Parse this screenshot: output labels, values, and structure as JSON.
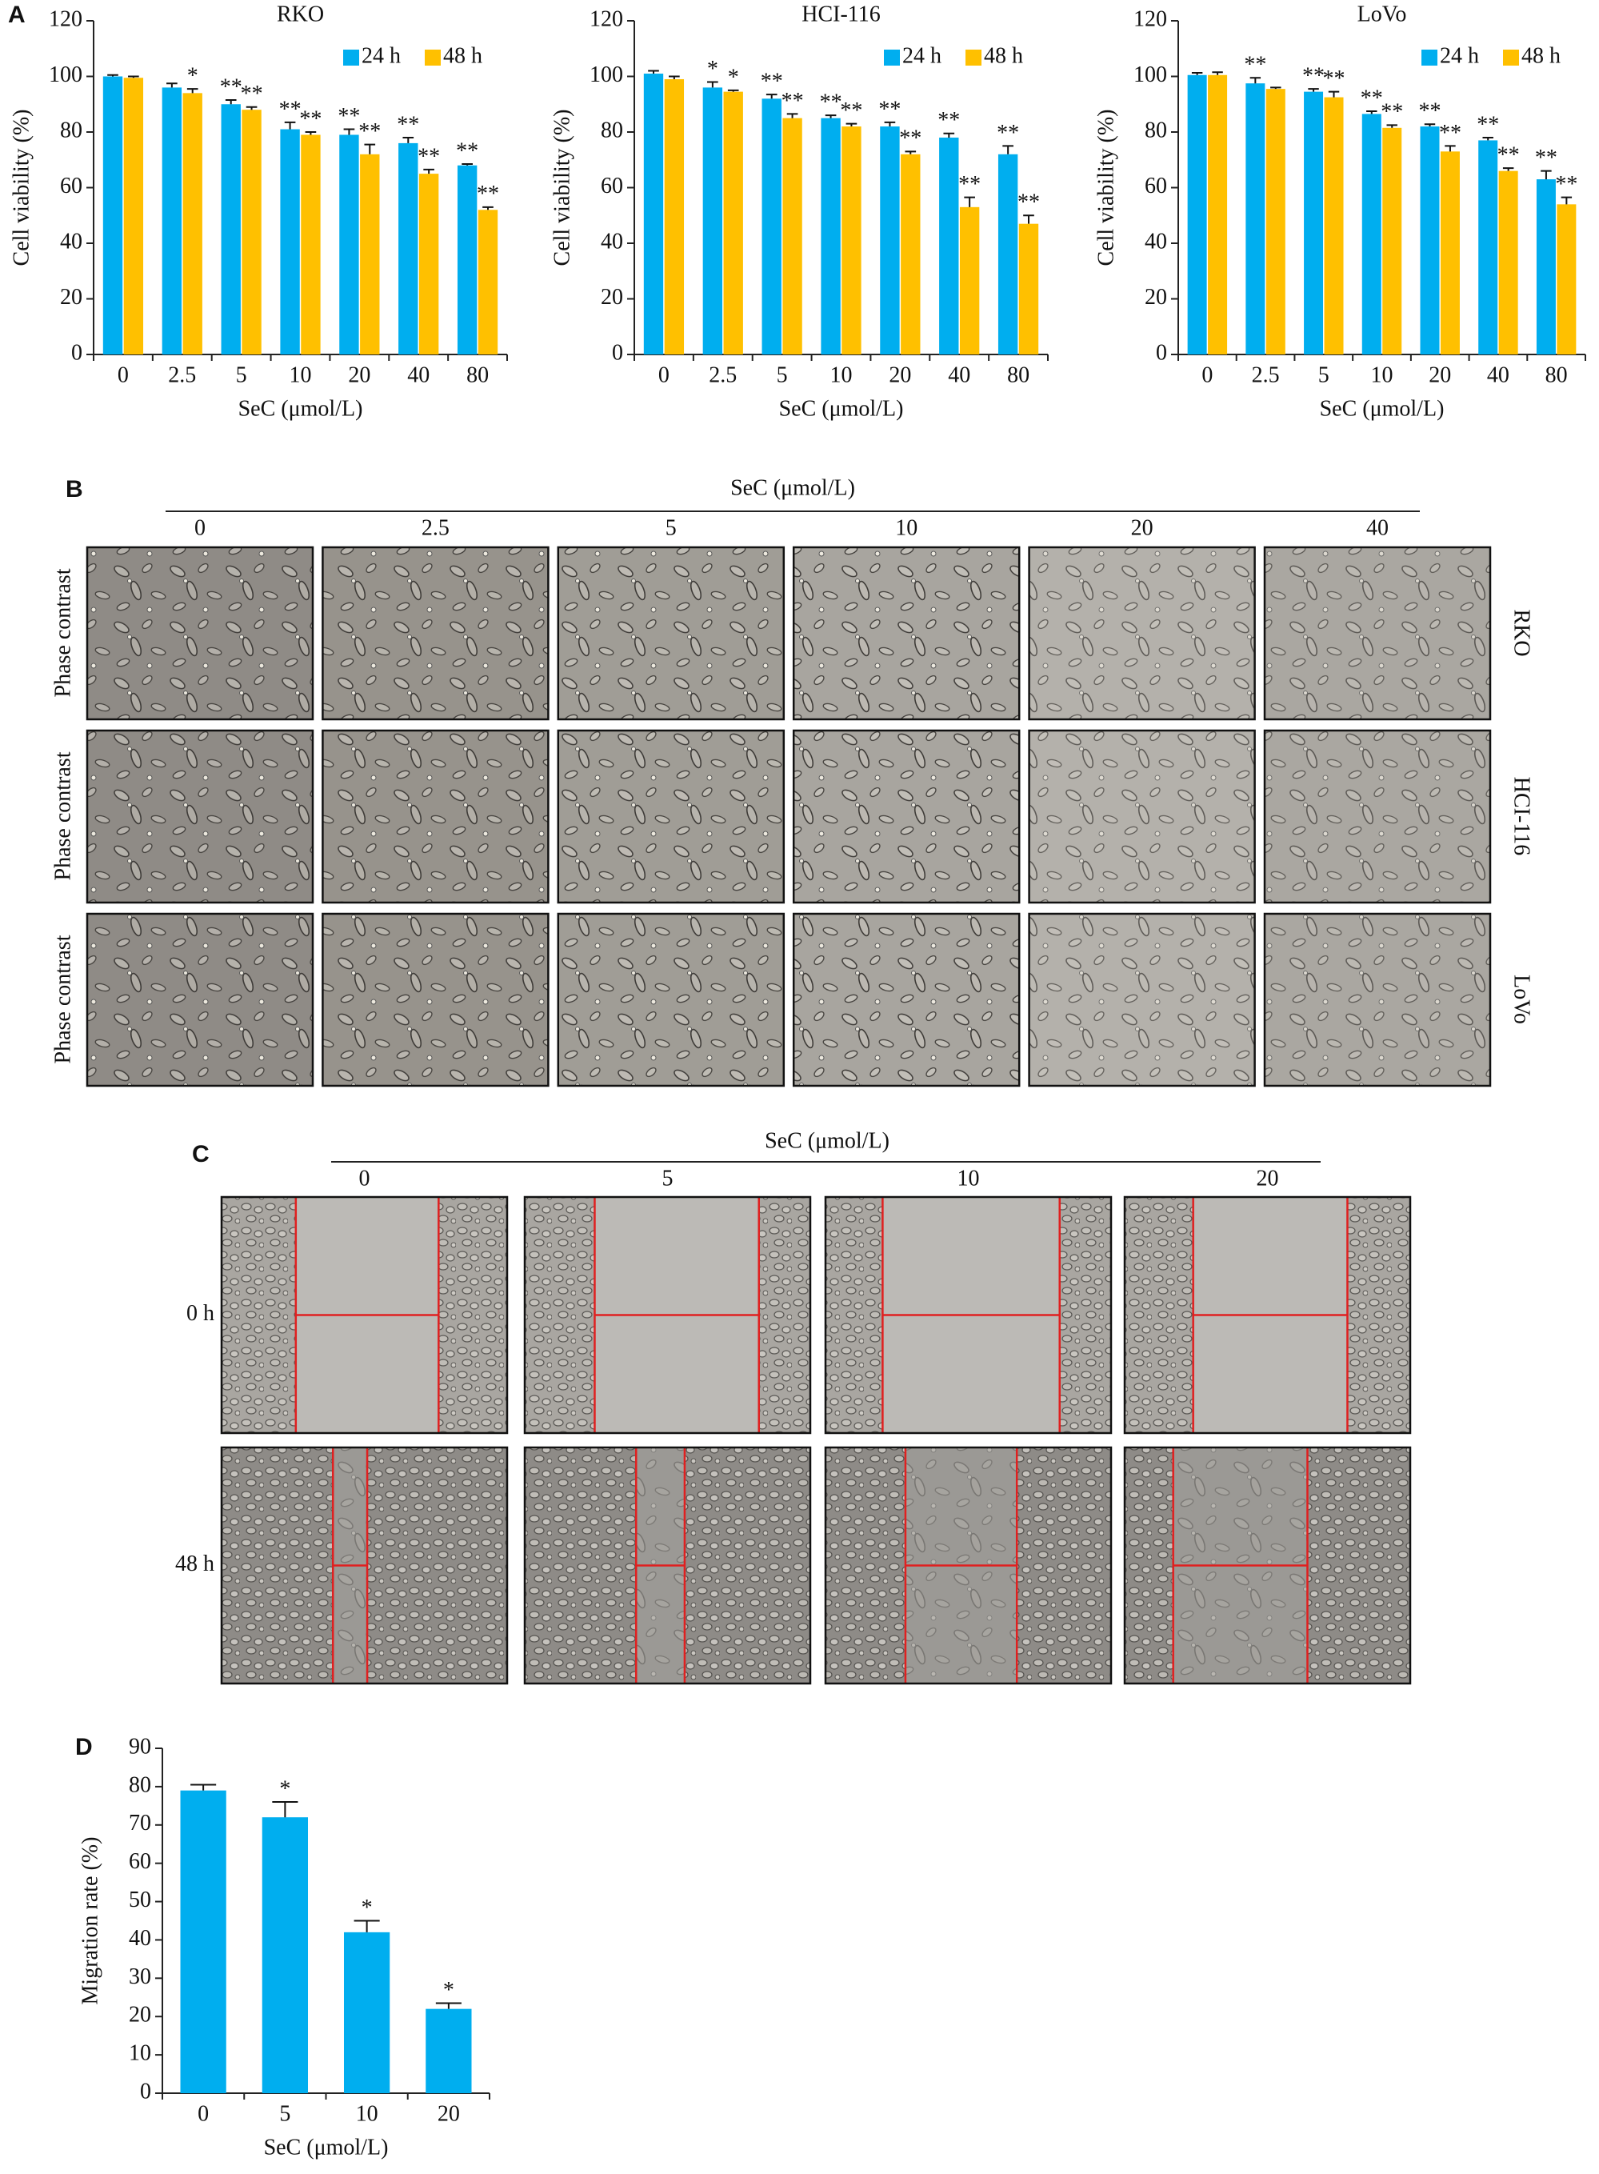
{
  "panel_labels": [
    "A",
    "B",
    "C",
    "D"
  ],
  "chart_data": [
    {
      "type": "bar",
      "title": "RKO",
      "x_label": "SeC (μmol/L)",
      "y_label": "Cell viability (%)",
      "categories": [
        "0",
        "2.5",
        "5",
        "10",
        "20",
        "40",
        "80"
      ],
      "series": [
        {
          "name": "24 h",
          "color": "#00aeef",
          "values": [
            100,
            96,
            90,
            81,
            79,
            76,
            68
          ],
          "errors": [
            0.5,
            1.5,
            1.5,
            2.5,
            2,
            2,
            0.5
          ],
          "annotations": [
            null,
            null,
            "**",
            "**",
            "**",
            "**",
            "**"
          ]
        },
        {
          "name": "48 h",
          "color": "#ffc000",
          "values": [
            99.5,
            94,
            88,
            79,
            72,
            65,
            52
          ],
          "errors": [
            0.5,
            1.5,
            1,
            1,
            3.5,
            1.5,
            1
          ],
          "annotations": [
            null,
            "*",
            "**",
            "**",
            "**",
            "**",
            "**"
          ]
        }
      ],
      "ylim": [
        0,
        120
      ],
      "yticks": [
        0,
        20,
        40,
        60,
        80,
        100,
        120
      ],
      "legend": "top-right"
    },
    {
      "type": "bar",
      "title": "HCI-116",
      "x_label": "SeC (μmol/L)",
      "y_label": "Cell viability (%)",
      "categories": [
        "0",
        "2.5",
        "5",
        "10",
        "20",
        "40",
        "80"
      ],
      "series": [
        {
          "name": "24 h",
          "color": "#00aeef",
          "values": [
            101,
            96,
            92,
            85,
            82,
            78,
            72
          ],
          "errors": [
            1,
            2,
            1.5,
            1,
            1.5,
            1.5,
            3
          ],
          "annotations": [
            null,
            "*",
            "**",
            "**",
            "**",
            "**",
            "**"
          ]
        },
        {
          "name": "48 h",
          "color": "#ffc000",
          "values": [
            99,
            94.5,
            85,
            82,
            72,
            53,
            47
          ],
          "errors": [
            1,
            0.5,
            1.5,
            1,
            1,
            3.5,
            3
          ],
          "annotations": [
            null,
            "*",
            "**",
            "**",
            "**",
            "**",
            "**"
          ]
        }
      ],
      "ylim": [
        0,
        120
      ],
      "yticks": [
        0,
        20,
        40,
        60,
        80,
        100,
        120
      ],
      "legend": "top-right"
    },
    {
      "type": "bar",
      "title": "LoVo",
      "x_label": "SeC (μmol/L)",
      "y_label": "Cell viability (%)",
      "categories": [
        "0",
        "2.5",
        "5",
        "10",
        "20",
        "40",
        "80"
      ],
      "series": [
        {
          "name": "24 h",
          "color": "#00aeef",
          "values": [
            100.5,
            97.5,
            94.5,
            86.5,
            82,
            77,
            63
          ],
          "errors": [
            0.8,
            2,
            1,
            1,
            0.8,
            1,
            3
          ],
          "annotations": [
            null,
            "**",
            "**",
            "**",
            "**",
            "**",
            "**"
          ]
        },
        {
          "name": "48 h",
          "color": "#ffc000",
          "values": [
            100.5,
            95.5,
            92.5,
            81.5,
            73,
            66,
            54
          ],
          "errors": [
            1,
            0.5,
            2,
            1,
            2,
            1,
            2.5
          ],
          "annotations": [
            null,
            null,
            "**",
            "**",
            "**",
            "**",
            "**"
          ]
        }
      ],
      "ylim": [
        0,
        120
      ],
      "yticks": [
        0,
        20,
        40,
        60,
        80,
        100,
        120
      ],
      "legend": "top-right"
    },
    {
      "type": "bar",
      "x_label": "SeC (μmol/L)",
      "y_label": "Migration rate (%)",
      "categories": [
        "0",
        "5",
        "10",
        "20"
      ],
      "series": [
        {
          "color": "#00aeef",
          "values": [
            79,
            72,
            42,
            22
          ],
          "errors": [
            1.5,
            4,
            3,
            1.5
          ],
          "annotations": [
            null,
            "*",
            "*",
            "*"
          ]
        }
      ],
      "ylim": [
        0,
        90
      ],
      "yticks": [
        0,
        10,
        20,
        30,
        40,
        50,
        60,
        70,
        80,
        90
      ]
    }
  ],
  "panel_b": {
    "header": "SeC (μmol/L)",
    "columns": [
      "0",
      "2.5",
      "5",
      "10",
      "20",
      "40"
    ],
    "left_labels": [
      "Phase contrast",
      "Phase contrast",
      "Phase contrast"
    ],
    "row_labels": [
      "RKO",
      "HCI-116",
      "LoVo"
    ]
  },
  "panel_c": {
    "header": "SeC (μmol/L)",
    "columns": [
      "0",
      "5",
      "10",
      "20"
    ],
    "rows": [
      "0 h",
      "48 h"
    ]
  }
}
